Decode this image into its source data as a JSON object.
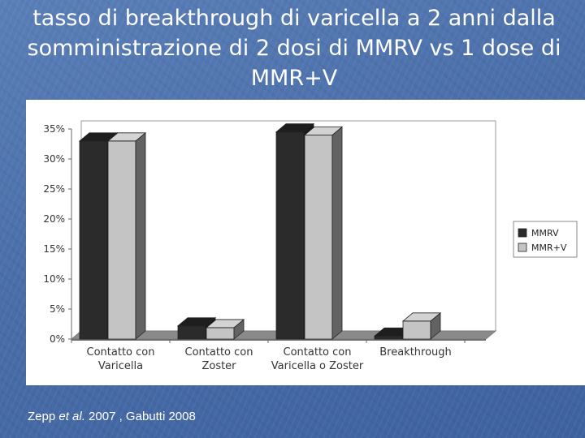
{
  "slide": {
    "title": "tasso di breakthrough di varicella a 2 anni dalla somministrazione di 2 dosi di MMRV vs 1 dose di MMR+V",
    "citation": {
      "author": "Zepp ",
      "etal": "et al.",
      "rest": " 2007 , Gabutti 2008"
    }
  },
  "chart_data": {
    "type": "bar",
    "categories": [
      [
        "Contatto con",
        "Varicella"
      ],
      [
        "Contatto con",
        "Zoster"
      ],
      [
        "Contatto con",
        "Varicella o Zoster"
      ],
      [
        "Breakthrough"
      ]
    ],
    "series": [
      {
        "name": "MMRV",
        "values": [
          33.0,
          2.2,
          34.5,
          0.5
        ],
        "color": "#2b2b2b"
      },
      {
        "name": "MMR+V",
        "values": [
          33.0,
          1.9,
          34.0,
          3.0
        ],
        "color": "#c4c4c4"
      }
    ],
    "ylim": [
      0,
      35
    ],
    "yticks": [
      "0%",
      "5%",
      "10%",
      "15%",
      "20%",
      "25%",
      "30%",
      "35%"
    ],
    "style": "3d-bar",
    "legend_position": "right",
    "grid": false
  }
}
